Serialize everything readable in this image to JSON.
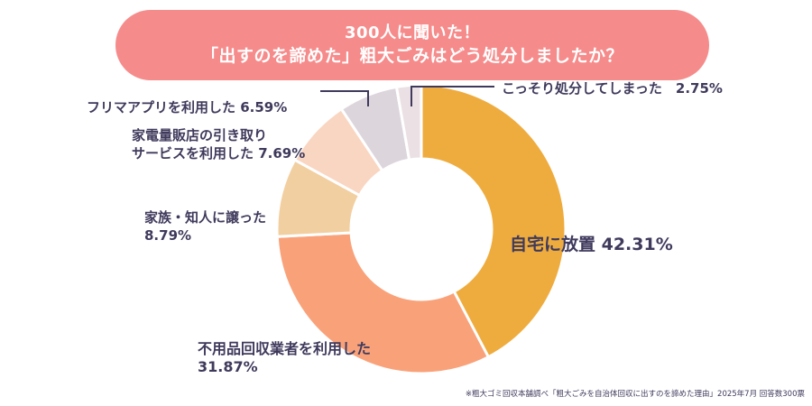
{
  "title": {
    "line1": "300人に聞いた！",
    "line2": "「出すのを諦めた」粗大ごみはどう処分しましたか？"
  },
  "chart_data": {
    "type": "pie",
    "style": "donut",
    "title": "300人に聞いた！「出すのを諦めた」粗大ごみはどう処分しましたか？",
    "slices": [
      {
        "label": "自宅に放置",
        "value": 42.31,
        "value_text": "42.31%",
        "color": "#efac3e"
      },
      {
        "label": "不用品回収業者を利用した",
        "value": 31.87,
        "value_text": "31.87%",
        "color": "#f9a27a"
      },
      {
        "label": "家族・知人に譲った",
        "value": 8.79,
        "value_text": "8.79%",
        "color": "#f2cfa0"
      },
      {
        "label": "家電量販店の引き取りサービスを利用した",
        "value": 7.69,
        "value_text": "7.69%",
        "color": "#f9d6c1"
      },
      {
        "label": "フリマアプリを利用した",
        "value": 6.59,
        "value_text": "6.59%",
        "color": "#dcd6dc"
      },
      {
        "label": "こっそり処分してしまった",
        "value": 2.75,
        "value_text": "2.75%",
        "color": "#ebe0e3"
      }
    ],
    "start_angle": "12 o'clock",
    "direction": "clockwise"
  },
  "labels": {
    "home": "自宅に放置 42.31%",
    "gyosha_1": "不用品回収業者を利用した",
    "gyosha_2": "31.87%",
    "kazoku_1": "家族・知人に譲った",
    "kazoku_2": "8.79%",
    "kaden_1": "家電量販店の引き取り",
    "kaden_2": "サービスを利用した 7.69%",
    "furima": "フリマアプリを利用した 6.59%",
    "kossori": "こっそり処分してしまった　2.75%"
  },
  "source": "※粗大ゴミ回収本舗調べ「粗大ごみを自治体回収に出すのを諦めた理由」2025年7月 回答数300票"
}
